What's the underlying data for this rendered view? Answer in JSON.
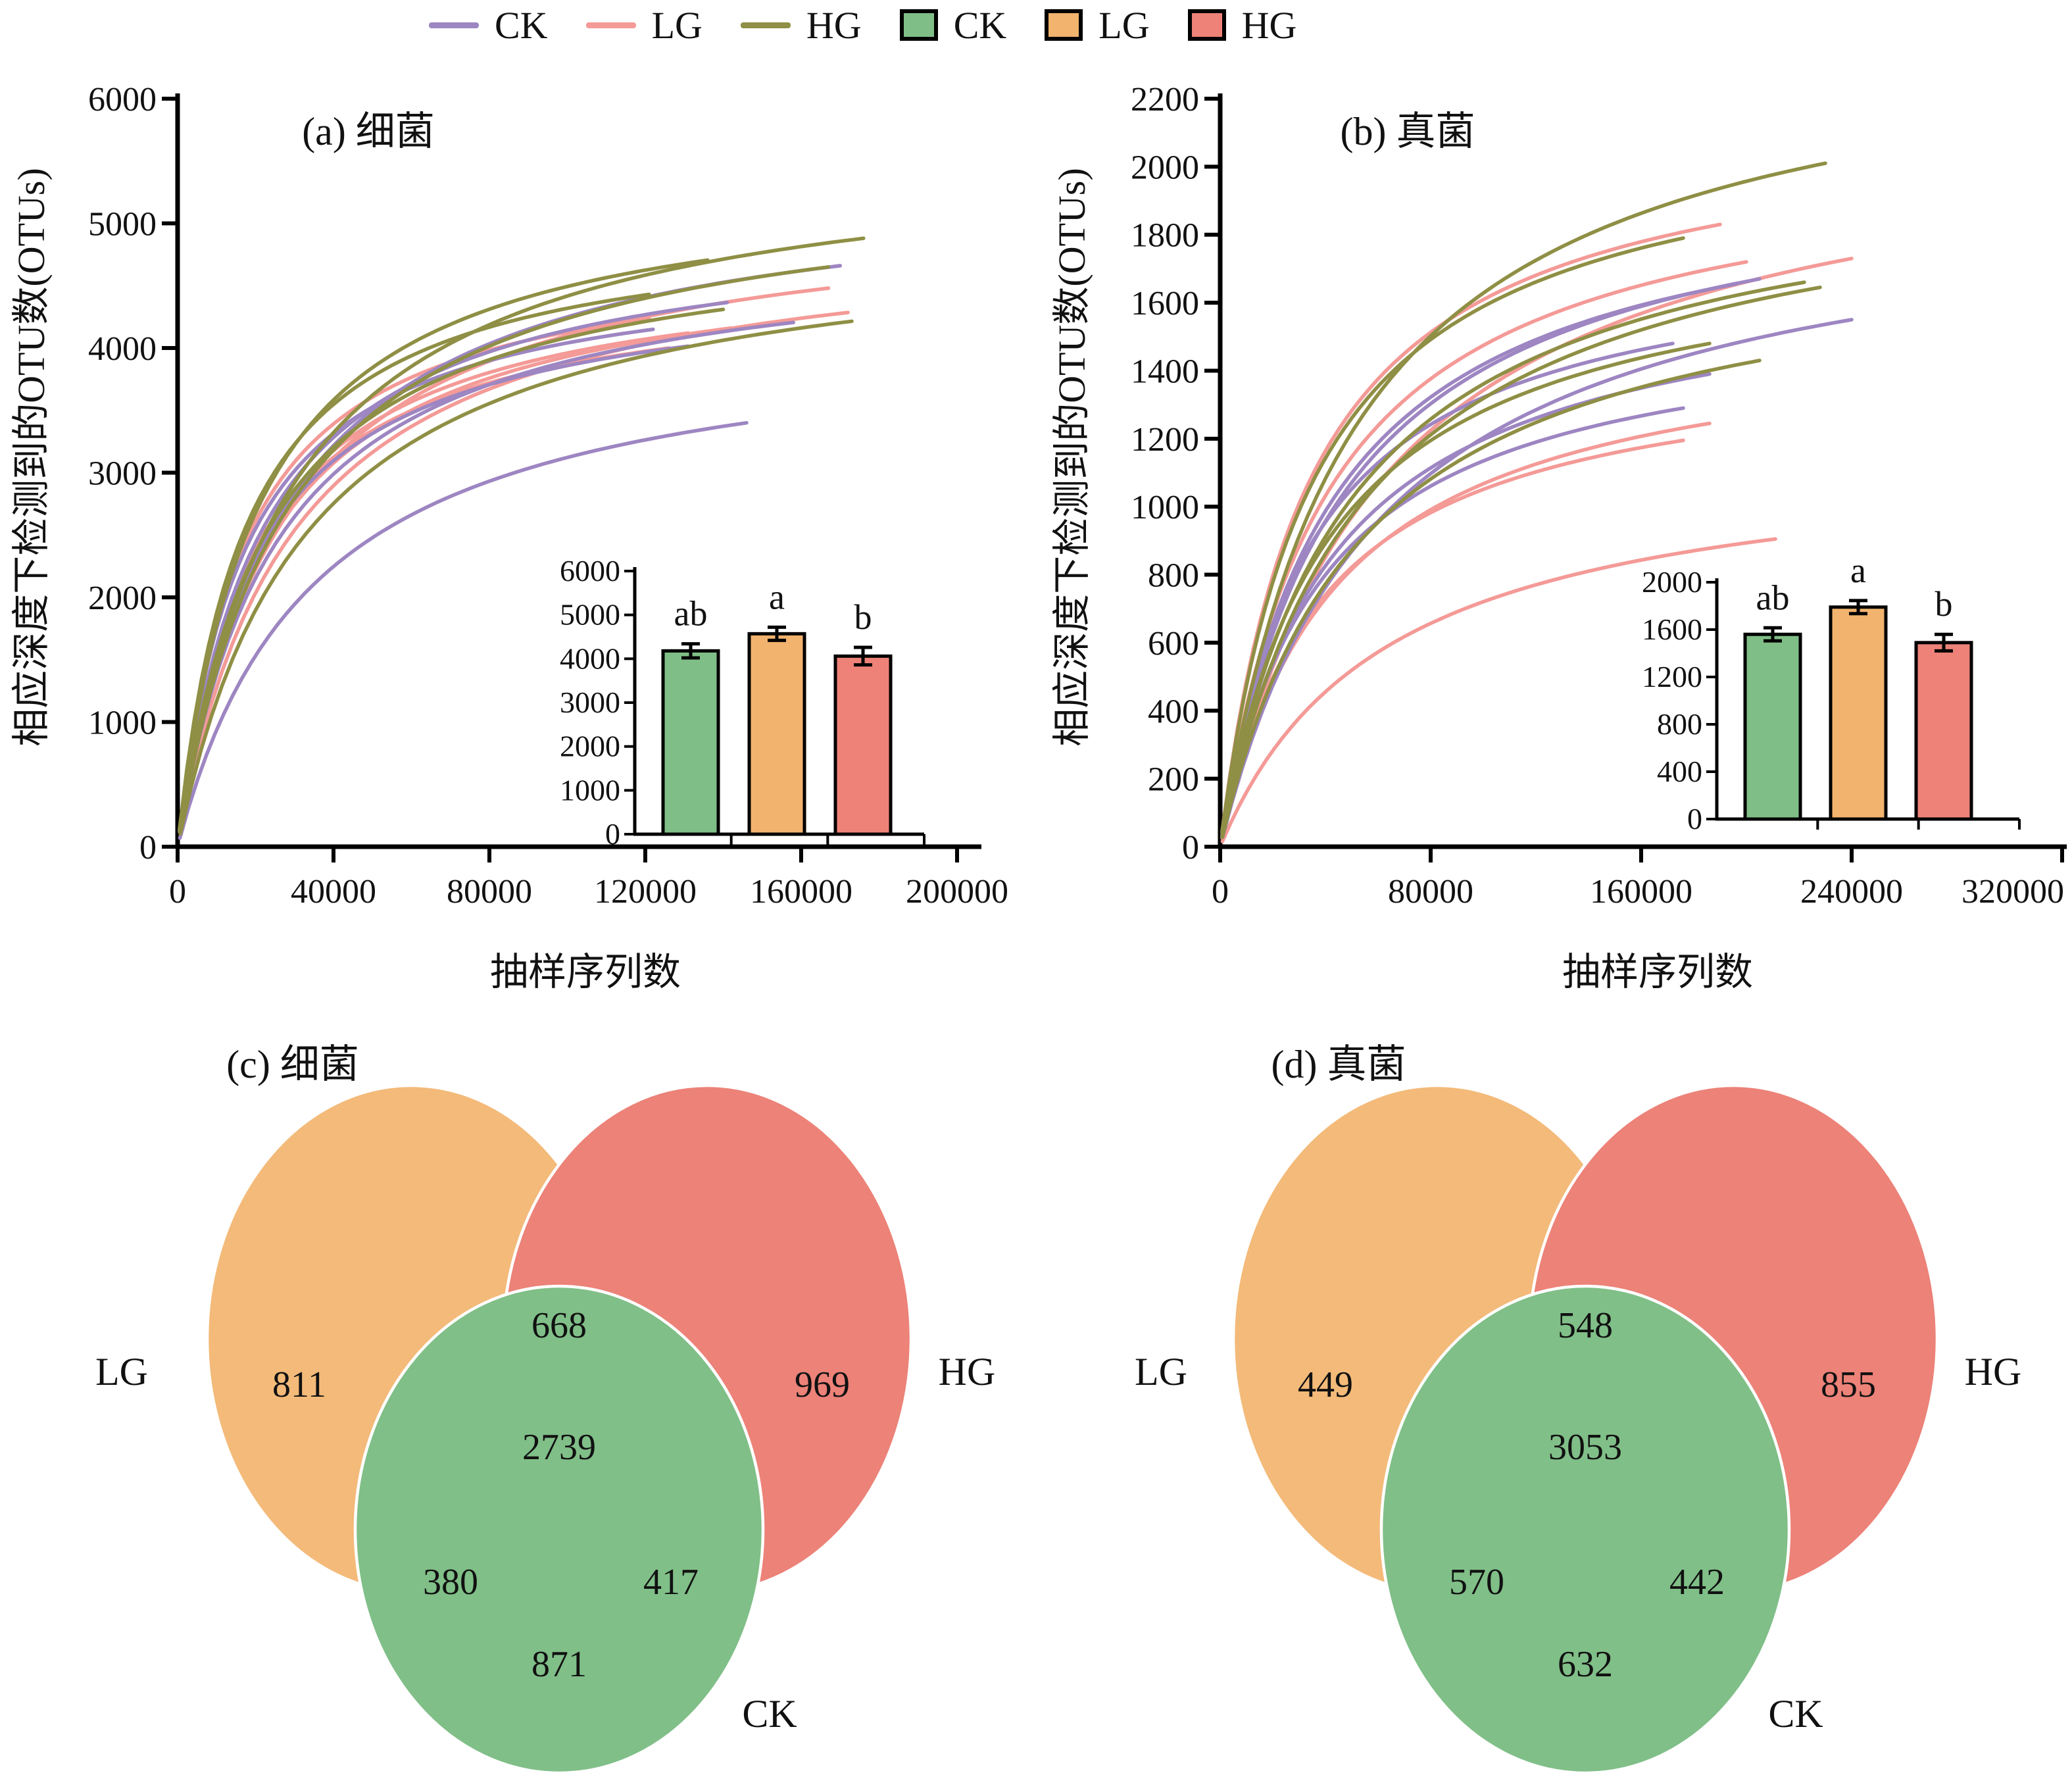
{
  "legend": {
    "line_items": [
      {
        "label": "CK",
        "color": "#9d86c2"
      },
      {
        "label": "LG",
        "color": "#f49a97"
      },
      {
        "label": "HG",
        "color": "#8f8f45"
      }
    ],
    "box_items": [
      {
        "label": "CK",
        "color": "#7fbf87"
      },
      {
        "label": "LG",
        "color": "#f2b36e"
      },
      {
        "label": "HG",
        "color": "#ee8278"
      }
    ]
  },
  "chart_data": [
    {
      "id": "a",
      "type": "line",
      "title": "(a) 细菌",
      "xlabel": "抽样序列数",
      "ylabel": "相应深度下检测到的OTU数(OTUs)",
      "xlim": [
        0,
        200000
      ],
      "ylim": [
        0,
        6000
      ],
      "xticks": [
        0,
        40000,
        80000,
        120000,
        160000,
        200000
      ],
      "yticks": [
        0,
        1000,
        2000,
        3000,
        4000,
        5000,
        6000
      ],
      "grid": false,
      "series": [
        {
          "group": "LG",
          "end_x": 167000,
          "end_y": 4480,
          "c": 0.16
        },
        {
          "group": "LG",
          "end_x": 172000,
          "end_y": 4285,
          "c": 0.17
        },
        {
          "group": "LG",
          "end_x": 121000,
          "end_y": 4235,
          "c": 0.14
        },
        {
          "group": "LG",
          "end_x": 142000,
          "end_y": 4160,
          "c": 0.16
        },
        {
          "group": "LG",
          "end_x": 131000,
          "end_y": 4120,
          "c": 0.15
        },
        {
          "group": "LG",
          "end_x": 126000,
          "end_y": 4000,
          "c": 0.15
        },
        {
          "group": "CK",
          "end_x": 170000,
          "end_y": 4660,
          "c": 0.16
        },
        {
          "group": "CK",
          "end_x": 141000,
          "end_y": 4365,
          "c": 0.15
        },
        {
          "group": "CK",
          "end_x": 158000,
          "end_y": 4205,
          "c": 0.16
        },
        {
          "group": "CK",
          "end_x": 122000,
          "end_y": 4150,
          "c": 0.14
        },
        {
          "group": "CK",
          "end_x": 131000,
          "end_y": 4015,
          "c": 0.15
        },
        {
          "group": "CK",
          "end_x": 146000,
          "end_y": 3400,
          "c": 0.24
        },
        {
          "group": "HG",
          "end_x": 176000,
          "end_y": 4880,
          "c": 0.16
        },
        {
          "group": "HG",
          "end_x": 136000,
          "end_y": 4705,
          "c": 0.15
        },
        {
          "group": "HG",
          "end_x": 167000,
          "end_y": 4650,
          "c": 0.17
        },
        {
          "group": "HG",
          "end_x": 121000,
          "end_y": 4430,
          "c": 0.14
        },
        {
          "group": "HG",
          "end_x": 140000,
          "end_y": 4310,
          "c": 0.16
        },
        {
          "group": "HG",
          "end_x": 173000,
          "end_y": 4215,
          "c": 0.19
        }
      ],
      "inset": {
        "type": "bar",
        "categories": [
          "CK",
          "LG",
          "HG"
        ],
        "values": [
          4180,
          4570,
          4060
        ],
        "errors": [
          160,
          150,
          200
        ],
        "letters": [
          "ab",
          "a",
          "b"
        ],
        "colors": [
          "#7fbf87",
          "#f2b36e",
          "#ee8278"
        ],
        "ylim": [
          0,
          6000
        ],
        "yticks": [
          0,
          1000,
          2000,
          3000,
          4000,
          5000,
          6000
        ]
      }
    },
    {
      "id": "b",
      "type": "line",
      "title": "(b) 真菌",
      "xlabel": "抽样序列数",
      "ylabel": "相应深度下检测到的OTU数(OTUs)",
      "xlim": [
        0,
        320000
      ],
      "ylim": [
        0,
        2200
      ],
      "xticks": [
        0,
        80000,
        160000,
        240000,
        320000
      ],
      "yticks": [
        0,
        200,
        400,
        600,
        800,
        1000,
        1200,
        1400,
        1600,
        1800,
        2000,
        2200
      ],
      "grid": false,
      "series": [
        {
          "group": "LG",
          "end_x": 190000,
          "end_y": 1830,
          "c": 0.18
        },
        {
          "group": "LG",
          "end_x": 240000,
          "end_y": 1730,
          "c": 0.26
        },
        {
          "group": "LG",
          "end_x": 200000,
          "end_y": 1720,
          "c": 0.2
        },
        {
          "group": "LG",
          "end_x": 186000,
          "end_y": 1245,
          "c": 0.24
        },
        {
          "group": "LG",
          "end_x": 176000,
          "end_y": 1195,
          "c": 0.22
        },
        {
          "group": "LG",
          "end_x": 211000,
          "end_y": 905,
          "c": 0.3
        },
        {
          "group": "CK",
          "end_x": 205000,
          "end_y": 1670,
          "c": 0.22
        },
        {
          "group": "CK",
          "end_x": 196000,
          "end_y": 1655,
          "c": 0.21
        },
        {
          "group": "CK",
          "end_x": 240000,
          "end_y": 1550,
          "c": 0.26
        },
        {
          "group": "CK",
          "end_x": 186000,
          "end_y": 1390,
          "c": 0.23
        },
        {
          "group": "CK",
          "end_x": 176000,
          "end_y": 1290,
          "c": 0.22
        },
        {
          "group": "CK",
          "end_x": 172000,
          "end_y": 1480,
          "c": 0.2
        },
        {
          "group": "HG",
          "end_x": 230000,
          "end_y": 2010,
          "c": 0.22
        },
        {
          "group": "HG",
          "end_x": 176000,
          "end_y": 1790,
          "c": 0.2
        },
        {
          "group": "HG",
          "end_x": 222000,
          "end_y": 1660,
          "c": 0.22
        },
        {
          "group": "HG",
          "end_x": 228000,
          "end_y": 1645,
          "c": 0.24
        },
        {
          "group": "HG",
          "end_x": 186000,
          "end_y": 1480,
          "c": 0.22
        },
        {
          "group": "HG",
          "end_x": 205000,
          "end_y": 1430,
          "c": 0.26
        }
      ],
      "inset": {
        "type": "bar",
        "categories": [
          "CK",
          "LG",
          "HG"
        ],
        "values": [
          1560,
          1790,
          1490
        ],
        "errors": [
          55,
          55,
          70
        ],
        "letters": [
          "ab",
          "a",
          "b"
        ],
        "colors": [
          "#7fbf87",
          "#f2b36e",
          "#ee8278"
        ],
        "ylim": [
          0,
          2000
        ],
        "yticks": [
          0,
          400,
          800,
          1200,
          1600,
          2000
        ]
      }
    },
    {
      "id": "c",
      "type": "venn",
      "title": "(c) 细菌",
      "sets": [
        "LG",
        "HG",
        "CK"
      ],
      "set_colors": {
        "LG": "#f3ba79",
        "HG": "#ec8278",
        "CK": "#80bf88"
      },
      "regions": [
        {
          "name": "LG",
          "value": 811
        },
        {
          "name": "HG",
          "value": 969
        },
        {
          "name": "CK",
          "value": 871
        },
        {
          "name": "LG∩HG",
          "value": 668
        },
        {
          "name": "LG∩CK",
          "value": 380
        },
        {
          "name": "HG∩CK",
          "value": 417
        },
        {
          "name": "LG∩HG∩CK",
          "value": 2739
        }
      ]
    },
    {
      "id": "d",
      "type": "venn",
      "title": "(d) 真菌",
      "sets": [
        "LG",
        "HG",
        "CK"
      ],
      "set_colors": {
        "LG": "#f3ba79",
        "HG": "#ec8278",
        "CK": "#80bf88"
      },
      "regions": [
        {
          "name": "LG",
          "value": 449
        },
        {
          "name": "HG",
          "value": 855
        },
        {
          "name": "CK",
          "value": 632
        },
        {
          "name": "LG∩HG",
          "value": 548
        },
        {
          "name": "LG∩CK",
          "value": 570
        },
        {
          "name": "HG∩CK",
          "value": 442
        },
        {
          "name": "LG∩HG∩CK",
          "value": 3053
        }
      ]
    }
  ]
}
